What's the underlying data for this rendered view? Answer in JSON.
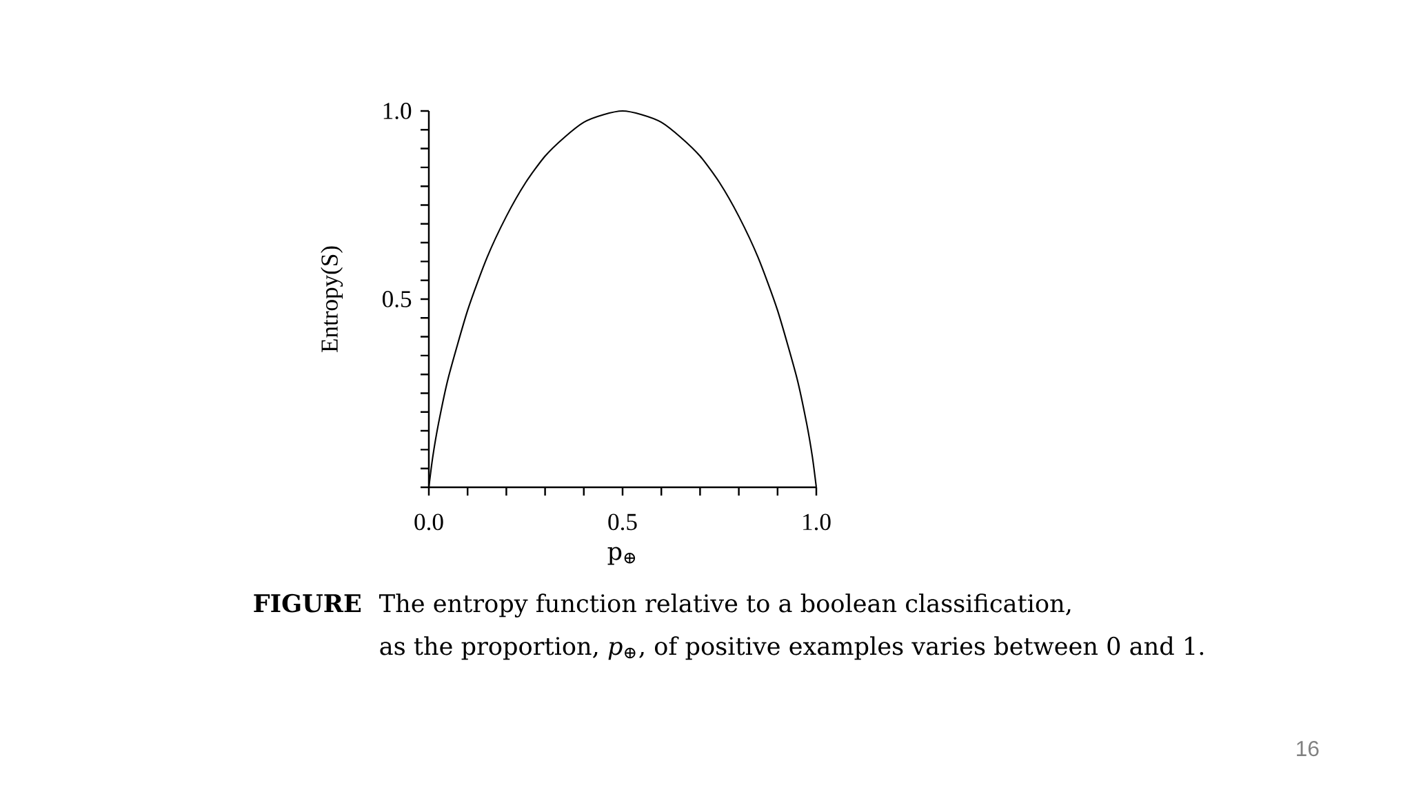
{
  "chart_data": {
    "type": "line",
    "xlabel": "p$_{⊕}$",
    "ylabel": "Entropy(S)",
    "x": [
      0,
      0.01,
      0.025,
      0.05,
      0.1,
      0.15,
      0.2,
      0.25,
      0.3,
      0.35,
      0.4,
      0.45,
      0.5,
      0.55,
      0.6,
      0.65,
      0.7,
      0.75,
      0.8,
      0.85,
      0.9,
      0.95,
      0.975,
      0.99,
      1
    ],
    "values": [
      0,
      0.08,
      0.17,
      0.29,
      0.47,
      0.61,
      0.72,
      0.81,
      0.88,
      0.93,
      0.97,
      0.99,
      1.0,
      0.99,
      0.97,
      0.93,
      0.88,
      0.81,
      0.72,
      0.61,
      0.47,
      0.29,
      0.17,
      0.08,
      0
    ],
    "color": "#000000",
    "marker": "none",
    "line_style": "solid",
    "xlim": [
      0,
      1
    ],
    "ylim": [
      0,
      1
    ],
    "xticks": [
      {
        "value": 0,
        "label": "0.0"
      },
      {
        "value": 0.1,
        "label": null
      },
      {
        "value": 0.2,
        "label": null
      },
      {
        "value": 0.3,
        "label": null
      },
      {
        "value": 0.4,
        "label": null
      },
      {
        "value": 0.5,
        "label": "0.5"
      },
      {
        "value": 0.6,
        "label": null
      },
      {
        "value": 0.7,
        "label": null
      },
      {
        "value": 0.8,
        "label": null
      },
      {
        "value": 0.9,
        "label": null
      },
      {
        "value": 1,
        "label": "1.0"
      }
    ],
    "yticks": [
      {
        "value": 0,
        "label": null
      },
      {
        "value": 0.05,
        "label": null
      },
      {
        "value": 0.1,
        "label": null
      },
      {
        "value": 0.15,
        "label": null
      },
      {
        "value": 0.2,
        "label": null
      },
      {
        "value": 0.25,
        "label": null
      },
      {
        "value": 0.3,
        "label": null
      },
      {
        "value": 0.35,
        "label": null
      },
      {
        "value": 0.4,
        "label": null
      },
      {
        "value": 0.45,
        "label": null
      },
      {
        "value": 0.5,
        "label": "0.5"
      },
      {
        "value": 0.55,
        "label": null
      },
      {
        "value": 0.6,
        "label": null
      },
      {
        "value": 0.65,
        "label": null
      },
      {
        "value": 0.7,
        "label": null
      },
      {
        "value": 0.75,
        "label": null
      },
      {
        "value": 0.8,
        "label": null
      },
      {
        "value": 0.85,
        "label": null
      },
      {
        "value": 0.9,
        "label": null
      },
      {
        "value": 0.95,
        "label": null
      },
      {
        "value": 1,
        "label": "1.0"
      }
    ],
    "annotations": [
      "**FIGURE**",
      "The entropy function relative to a boolean classification,",
      "as the proportion, *p*$_{⊕}$, of positive examples varies between 0 and 1.",
      "16"
    ]
  }
}
